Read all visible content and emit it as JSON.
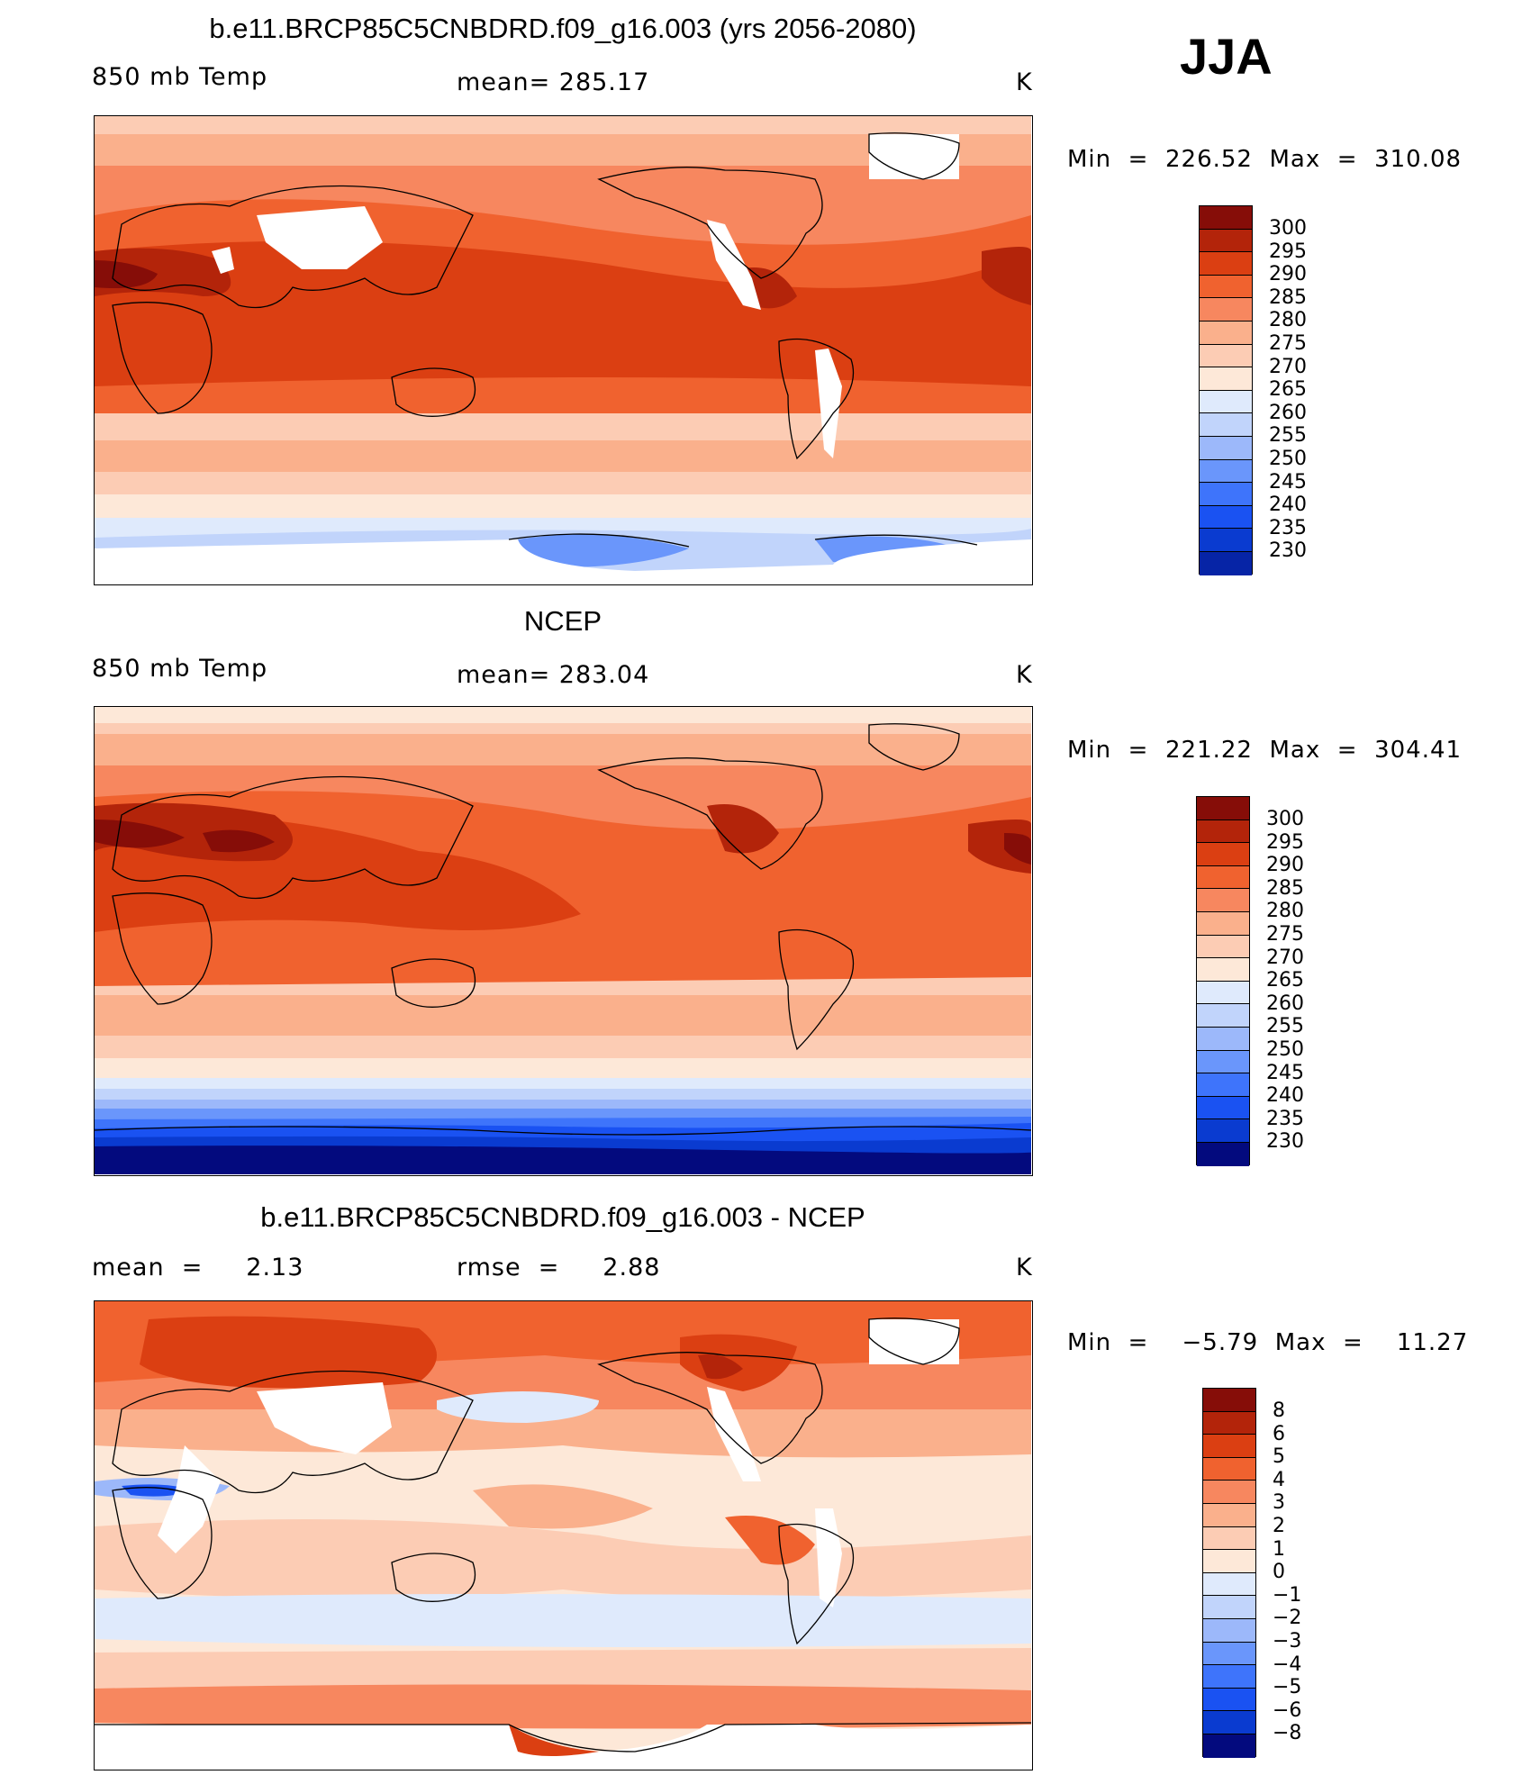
{
  "season": "JJA",
  "colors": {
    "temp_scale": [
      "#030a7e",
      "#0624a6",
      "#0a3bd0",
      "#1a52f2",
      "#3e74fb",
      "#6a96fb",
      "#9cb8fa",
      "#c1d4fb",
      "#dfeafc",
      "#fde8d8",
      "#fcccb4",
      "#fab08c",
      "#f7875f",
      "#f0622f",
      "#db3f12",
      "#b3240a",
      "#860d08"
    ],
    "diff_scale": [
      "#030a7e",
      "#0624a6",
      "#0a3bd0",
      "#1a52f2",
      "#3e74fb",
      "#6a96fb",
      "#9cb8fa",
      "#c1d4fb",
      "#dfeafc",
      "#fde8d8",
      "#fcccb4",
      "#fab08c",
      "#f7875f",
      "#f0622f",
      "#db3f12",
      "#b3240a",
      "#860d08"
    ],
    "missing": "#ffffff"
  },
  "panels": [
    {
      "title": "b.e11.BRCP85C5CNBDRD.f09_g16.003 (yrs 2056-2080)",
      "left_label": "850 mb Temp",
      "center_label": "mean=  285.17",
      "units": "K",
      "minmax": "Min  =  226.52  Max  =  310.08",
      "legend_labels": [
        "300",
        "295",
        "290",
        "285",
        "280",
        "275",
        "270",
        "265",
        "260",
        "255",
        "250",
        "245",
        "240",
        "235",
        "230"
      ]
    },
    {
      "title": "NCEP",
      "left_label": "850 mb Temp",
      "center_label": "mean=  283.04",
      "units": "K",
      "minmax": "Min  =  221.22  Max  =  304.41",
      "legend_labels": [
        "300",
        "295",
        "290",
        "285",
        "280",
        "275",
        "270",
        "265",
        "260",
        "255",
        "250",
        "245",
        "240",
        "235",
        "230"
      ]
    },
    {
      "title": "b.e11.BRCP85C5CNBDRD.f09_g16.003 - NCEP",
      "left_label": "mean  =     2.13",
      "center_label": "rmse  =     2.88",
      "units": "K",
      "minmax": "Min  =    −5.79  Max  =    11.27",
      "legend_labels": [
        "8",
        "6",
        "5",
        "4",
        "3",
        "2",
        "1",
        "0",
        "−1",
        "−2",
        "−3",
        "−4",
        "−5",
        "−6",
        "−8"
      ]
    }
  ]
}
